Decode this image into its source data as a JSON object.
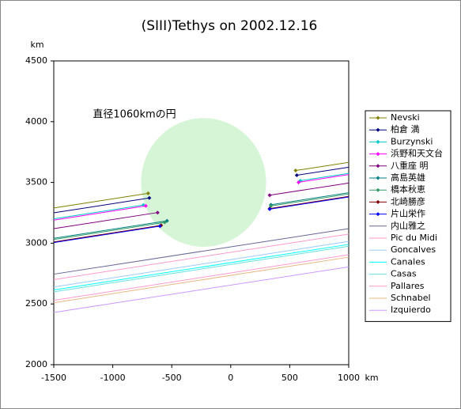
{
  "chart_data": {
    "type": "line",
    "title": "(SIII)Tethys on 2002.12.16",
    "xlabel": "km",
    "ylabel": "km",
    "annotation": "直径1060kmの円",
    "circle": {
      "cx": -230,
      "cy": 3500,
      "diameter": 1060,
      "color": "#d6f5d6"
    },
    "xlim": [
      -1500,
      1000
    ],
    "xticks": [
      -1500,
      -1000,
      -500,
      0,
      500,
      1000
    ],
    "ylim": [
      2000,
      4500
    ],
    "yticks": [
      2000,
      2500,
      3000,
      3500,
      4000,
      4500
    ],
    "legend": "right",
    "series": [
      {
        "name": "Nevski",
        "color": "#808000",
        "marker": true,
        "x": [
          -1500,
          -700,
          null,
          550,
          1000
        ],
        "values": [
          3290,
          3410,
          null,
          3598,
          3665
        ]
      },
      {
        "name": "柏倉 満",
        "color": "#000080",
        "marker": true,
        "x": [
          -1500,
          -690,
          null,
          560,
          1000
        ],
        "values": [
          3250,
          3372,
          null,
          3559,
          3625
        ]
      },
      {
        "name": "Burzynski",
        "color": "#00c8c8",
        "marker": true,
        "x": [
          -1500,
          -740,
          null,
          590,
          1000
        ],
        "values": [
          3200,
          3314,
          null,
          3514,
          3575
        ]
      },
      {
        "name": "浜野和天文台",
        "color": "#ff00ff",
        "marker": true,
        "x": [
          -1500,
          -720,
          null,
          575,
          1000
        ],
        "values": [
          3190,
          3307,
          null,
          3501,
          3565
        ]
      },
      {
        "name": "八重座 明",
        "color": "#800080",
        "marker": true,
        "x": [
          -1500,
          -620,
          null,
          330,
          1000
        ],
        "values": [
          3120,
          3252,
          null,
          3395,
          3495
        ]
      },
      {
        "name": "高島英雄",
        "color": "#008080",
        "marker": true,
        "x": [
          -1500,
          -540,
          null,
          340,
          1000
        ],
        "values": [
          3040,
          3184,
          null,
          3316,
          3415
        ]
      },
      {
        "name": "橋本秋恵",
        "color": "#339966",
        "marker": true,
        "x": [
          -1500,
          -560,
          null,
          340,
          1000
        ],
        "values": [
          3030,
          3171,
          null,
          3306,
          3405
        ]
      },
      {
        "name": "北崎勝彦",
        "color": "#800000",
        "marker": true,
        "x": [
          -1500,
          -590,
          null,
          330,
          1000
        ],
        "values": [
          3010,
          3147,
          null,
          3285,
          3385
        ]
      },
      {
        "name": "片山栄作",
        "color": "#0000ff",
        "marker": true,
        "x": [
          -1500,
          -600,
          null,
          330,
          1000
        ],
        "values": [
          3005,
          3140,
          null,
          3280,
          3380
        ]
      },
      {
        "name": "内山雅之",
        "color": "#666699",
        "marker": false,
        "x": [
          -1500,
          1000
        ],
        "values": [
          2745,
          3120
        ]
      },
      {
        "name": "Pic du Midi",
        "color": "#ff99cc",
        "marker": false,
        "x": [
          -1500,
          1000
        ],
        "values": [
          2700,
          3075
        ]
      },
      {
        "name": "Goncalves",
        "color": "#99ccff",
        "marker": false,
        "x": [
          -1500,
          1000
        ],
        "values": [
          2640,
          3015
        ]
      },
      {
        "name": "Canales",
        "color": "#00ffff",
        "marker": false,
        "x": [
          -1500,
          1000
        ],
        "values": [
          2615,
          2990
        ]
      },
      {
        "name": "Casas",
        "color": "#66e0e0",
        "marker": false,
        "x": [
          -1500,
          1000
        ],
        "values": [
          2600,
          2975
        ]
      },
      {
        "name": "Pallares",
        "color": "#ff99cc",
        "marker": false,
        "x": [
          -1500,
          1000
        ],
        "values": [
          2530,
          2905
        ]
      },
      {
        "name": "Schnabel",
        "color": "#e6b880",
        "marker": false,
        "x": [
          -1500,
          1000
        ],
        "values": [
          2510,
          2885
        ]
      },
      {
        "name": "Izquierdo",
        "color": "#cc99ff",
        "marker": false,
        "x": [
          -1500,
          1000
        ],
        "values": [
          2430,
          2805
        ]
      }
    ]
  }
}
